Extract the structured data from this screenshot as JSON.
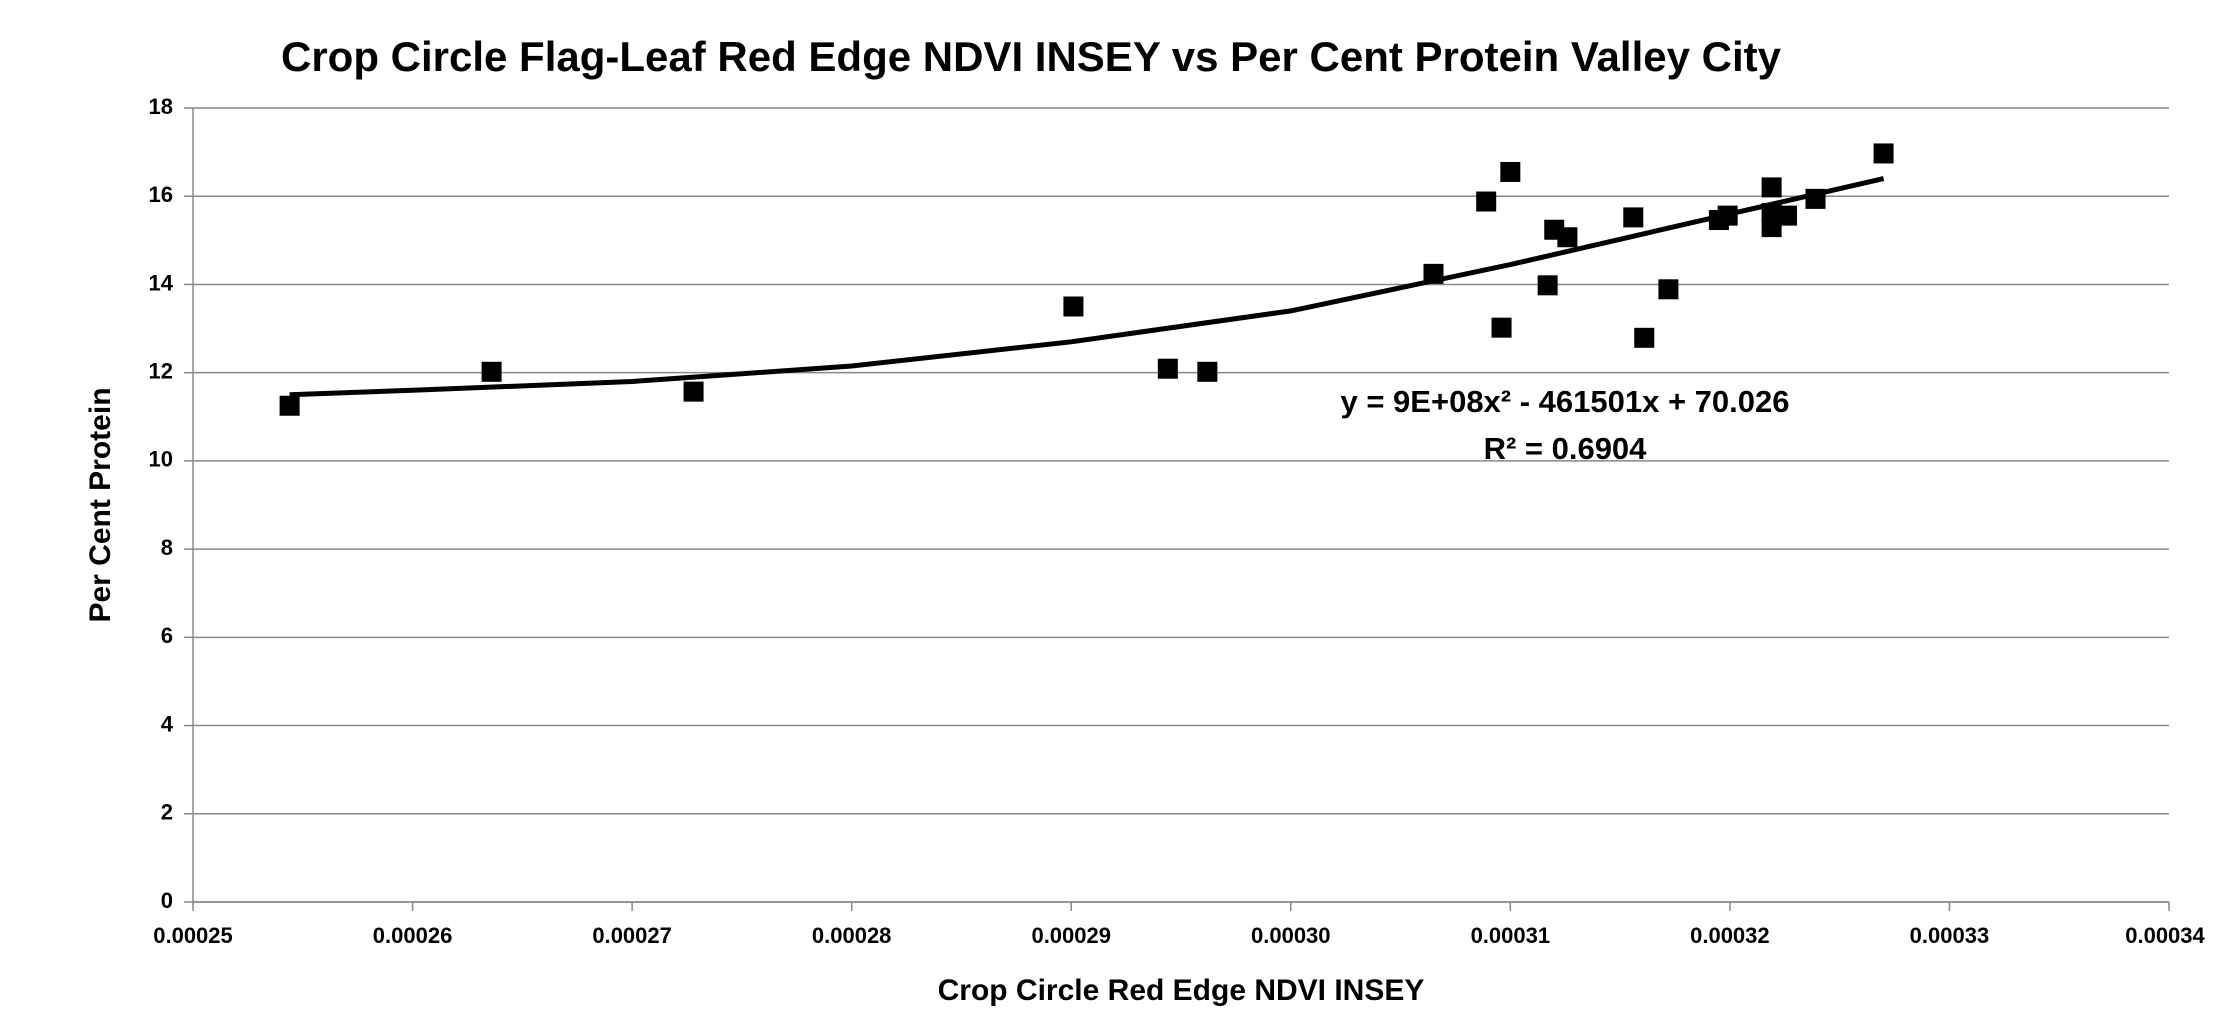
{
  "chart_data": {
    "type": "scatter",
    "title": "Crop Circle Flag-Leaf Red Edge NDVI INSEY vs Per Cent Protein Valley City",
    "x_label": "Crop Circle Red Edge NDVI INSEY",
    "y_label": "Per Cent Protein",
    "annotations": [
      "y = 9E+08x² - 461501x + 70.026",
      "R² = 0.6904"
    ],
    "color": "#000000",
    "x": [
      0.0002544,
      0.0002636,
      0.0002728,
      0.0002901,
      0.0002944,
      0.0002962,
      0.0003065,
      0.0003089,
      0.0003096,
      0.00031,
      0.0003117,
      0.000312,
      0.0003126,
      0.0003156,
      0.0003161,
      0.0003172,
      0.0003195,
      0.0003199,
      0.0003219,
      0.0003219,
      0.0003219,
      0.0003226,
      0.0003239,
      0.000327
    ],
    "values": [
      11.25,
      12.02,
      11.57,
      13.5,
      12.09,
      12.02,
      14.24,
      15.88,
      13.02,
      16.55,
      13.98,
      15.24,
      15.07,
      15.52,
      12.79,
      13.89,
      15.46,
      15.56,
      16.2,
      15.62,
      15.3,
      15.56,
      15.94,
      16.97
    ],
    "trendline": {
      "x": [
        0.0002544,
        0.00026,
        0.00027,
        0.00028,
        0.00029,
        0.0003,
        0.00031,
        0.00032,
        0.000327
      ],
      "values": [
        11.5,
        11.6,
        11.8,
        12.15,
        12.7,
        13.4,
        14.45,
        15.6,
        16.4
      ]
    },
    "xlim": [
      0.00025,
      0.00034
    ],
    "xticks": [
      0.00025,
      0.00026,
      0.00027,
      0.00028,
      0.00029,
      {
        "value": 0.0003,
        "label": "0.00030"
      },
      0.00031,
      0.00032,
      0.00033,
      0.00034
    ],
    "ylim": [
      0,
      18
    ],
    "yticks": [
      0,
      2,
      4,
      6,
      8,
      10,
      12,
      14,
      16,
      18
    ],
    "grid": true
  }
}
